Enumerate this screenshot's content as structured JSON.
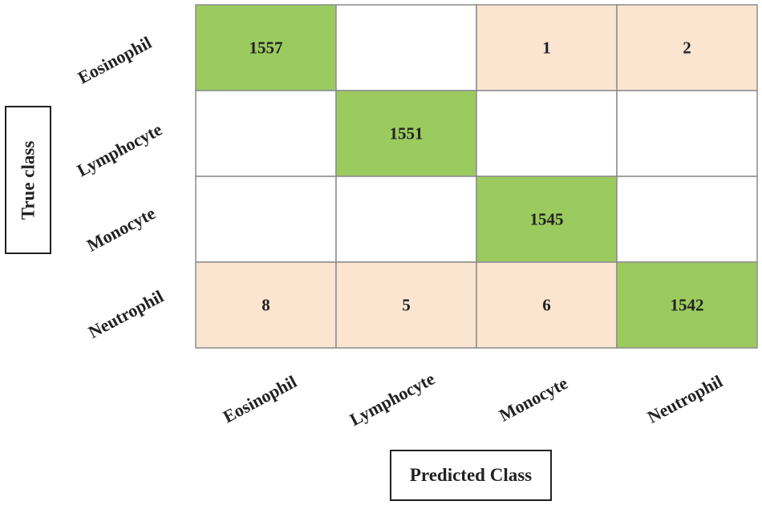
{
  "chart_data": {
    "type": "heatmap",
    "title": "",
    "xlabel": "Predicted Class",
    "ylabel": "True class",
    "x_categories": [
      "Eosinophil",
      "Lymphocyte",
      "Monocyte",
      "Neutrophil"
    ],
    "y_categories": [
      "Eosinophil",
      "Lymphocyte",
      "Monocyte",
      "Neutrophil"
    ],
    "values": [
      [
        1557,
        0,
        1,
        2
      ],
      [
        0,
        1551,
        0,
        0
      ],
      [
        0,
        0,
        1545,
        0
      ],
      [
        8,
        5,
        6,
        1542
      ]
    ],
    "zero_shown_as_blank": true,
    "colors": {
      "correct": "#9bcb5f",
      "error": "#fbe5d1",
      "empty": "#ffffff",
      "gridline": "#8c8c8c"
    }
  }
}
